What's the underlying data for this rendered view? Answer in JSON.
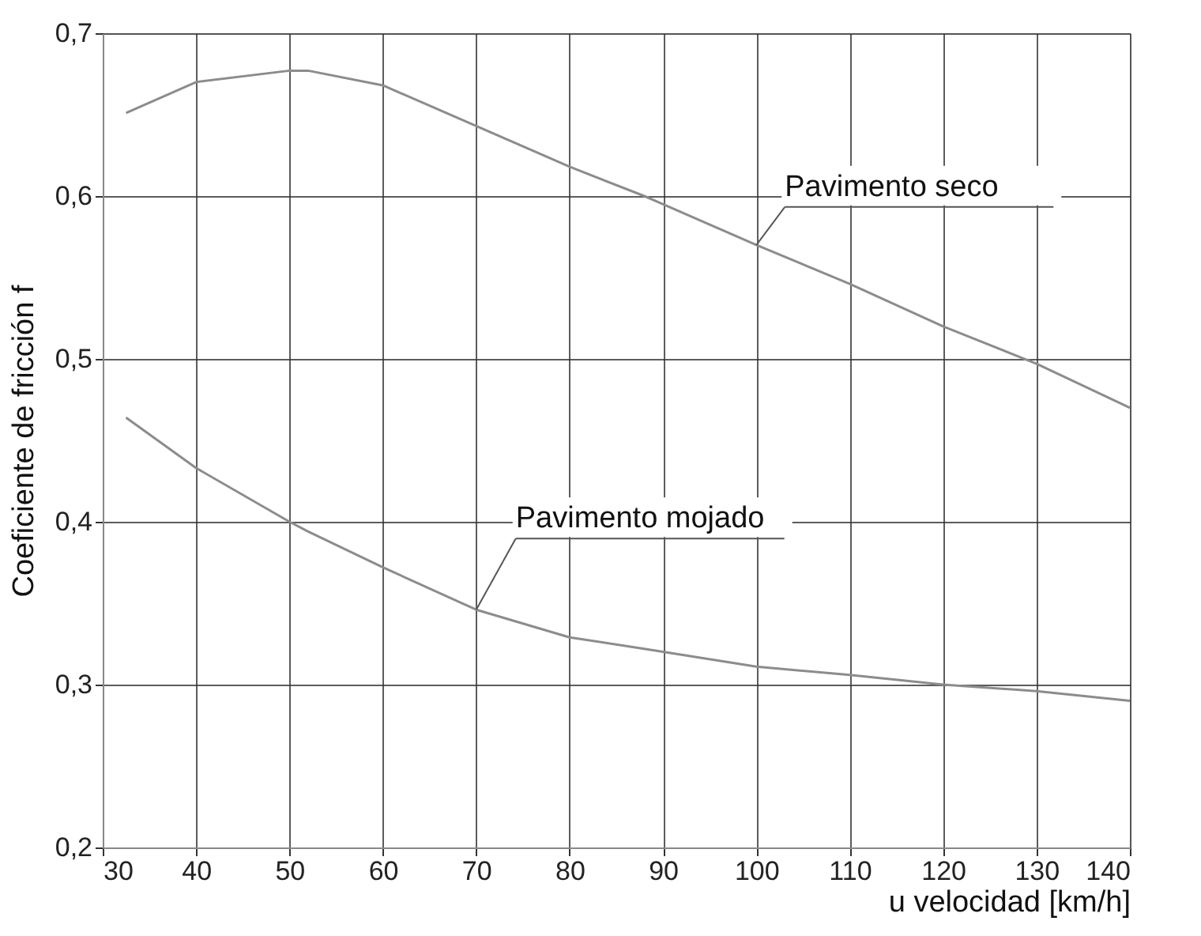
{
  "chart_data": {
    "type": "line",
    "xlabel": "u velocidad [km/h]",
    "ylabel": "Coeficiente de fricción f",
    "x": [
      32.5,
      40,
      50,
      52,
      60,
      70,
      80,
      88,
      100,
      110,
      120,
      130,
      140
    ],
    "series": [
      {
        "name": "Pavimento seco",
        "color": "#8c8c8c",
        "values": [
          0.651,
          0.67,
          0.677,
          0.677,
          0.668,
          0.643,
          0.618,
          0.6,
          0.57,
          0.546,
          0.52,
          0.497,
          0.47
        ]
      },
      {
        "name": "Pavimento mojado",
        "color": "#8c8c8c",
        "values": [
          0.464,
          0.433,
          0.4,
          0.394,
          0.372,
          0.346,
          0.329,
          0.322,
          0.311,
          0.306,
          0.3,
          0.296,
          0.29
        ]
      }
    ],
    "xlim": [
      30,
      140
    ],
    "xticks": [
      30,
      40,
      50,
      60,
      70,
      80,
      90,
      100,
      110,
      120,
      130,
      140
    ],
    "ylim": [
      0.2,
      0.7
    ],
    "yticks": [
      {
        "value": 0.2,
        "label": "0,2"
      },
      {
        "value": 0.3,
        "label": "0,3"
      },
      {
        "value": 0.4,
        "label": "0,4"
      },
      {
        "value": 0.5,
        "label": "0,5"
      },
      {
        "value": 0.6,
        "label": "0,6"
      },
      {
        "value": 0.7,
        "label": "0,7"
      }
    ],
    "grid": true,
    "legend": false,
    "marker": "none",
    "line_style": "solid"
  }
}
